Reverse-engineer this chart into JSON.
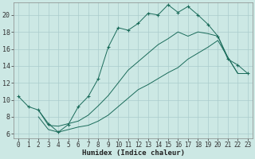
{
  "xlabel": "Humidex (Indice chaleur)",
  "bg_color": "#cce8e4",
  "line_color": "#1a6b5a",
  "grid_color": "#aacccc",
  "x_ticks": [
    0,
    1,
    2,
    3,
    4,
    5,
    6,
    7,
    8,
    9,
    10,
    11,
    12,
    13,
    14,
    15,
    16,
    17,
    18,
    19,
    20,
    21,
    22,
    23
  ],
  "y_ticks": [
    6,
    8,
    10,
    12,
    14,
    16,
    18,
    20
  ],
  "xlim": [
    -0.5,
    23.5
  ],
  "ylim": [
    5.5,
    21.5
  ],
  "curve1_x": [
    0,
    1,
    2,
    3,
    4,
    5,
    6,
    7,
    8,
    9,
    10,
    11,
    12,
    13,
    14,
    15,
    16,
    17,
    18,
    19,
    20,
    21,
    22,
    23
  ],
  "curve1_y": [
    10.4,
    9.2,
    8.8,
    7.2,
    6.2,
    7.1,
    9.2,
    10.4,
    12.5,
    16.2,
    18.5,
    18.2,
    19.0,
    20.2,
    20.0,
    21.2,
    20.3,
    21.0,
    20.0,
    18.9,
    17.5,
    14.8,
    14.1,
    13.1
  ],
  "line2_x": [
    2,
    3,
    4,
    5,
    6,
    7,
    8,
    9,
    10,
    11,
    12,
    13,
    14,
    15,
    16,
    17,
    18,
    19,
    20,
    21,
    22,
    23
  ],
  "line2_y": [
    8.8,
    7.0,
    6.9,
    7.2,
    7.5,
    8.2,
    9.3,
    10.5,
    12.0,
    13.5,
    14.5,
    15.5,
    16.5,
    17.2,
    18.0,
    17.5,
    18.0,
    17.8,
    17.5,
    15.0,
    13.1,
    13.1
  ],
  "line3_x": [
    2,
    3,
    4,
    5,
    6,
    7,
    8,
    9,
    10,
    11,
    12,
    13,
    14,
    15,
    16,
    17,
    18,
    19,
    20,
    21,
    22,
    23
  ],
  "line3_y": [
    8.0,
    6.5,
    6.2,
    6.5,
    6.8,
    7.0,
    7.5,
    8.2,
    9.2,
    10.2,
    11.2,
    11.8,
    12.5,
    13.2,
    13.8,
    14.8,
    15.5,
    16.2,
    17.0,
    15.0,
    13.1,
    13.1
  ],
  "tick_fontsize": 5.5,
  "xlabel_fontsize": 6.5
}
